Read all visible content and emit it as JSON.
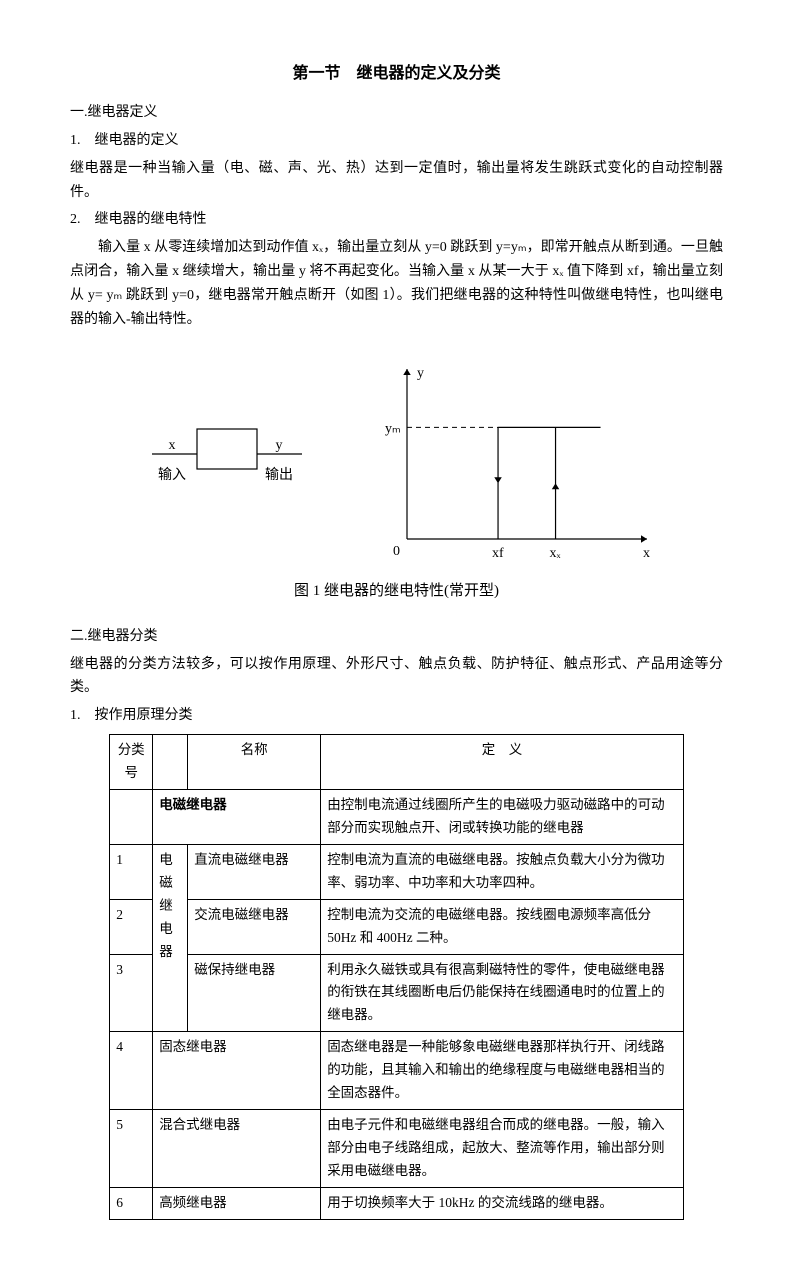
{
  "title": "第一节　继电器的定义及分类",
  "sec1": {
    "heading": "一.继电器定义",
    "item1": {
      "heading": "1.　继电器的定义",
      "body": "继电器是一种当输入量（电、磁、声、光、热）达到一定值时，输出量将发生跳跃式变化的自动控制器件。"
    },
    "item2": {
      "heading": "2.　继电器的继电特性",
      "body": "输入量 x 从零连续增加达到动作值 xₓ，输出量立刻从 y=0 跳跃到 y=yₘ，即常开触点从断到通。一旦触点闭合，输入量 x 继续增大，输出量 y 将不再起变化。当输入量 x 从某一大于 xₓ 值下降到 xf，输出量立刻从 y=  yₘ 跳跃到 y=0，继电器常开触点断开（如图 1）。我们把继电器的这种特性叫做继电特性，也叫继电器的输入-输出特性。"
    }
  },
  "figure1": {
    "block": {
      "x_label": "x",
      "y_label": "y",
      "in_label": "输入",
      "out_label": "输出"
    },
    "chart": {
      "type": "step-hysteresis",
      "y_axis_label": "y",
      "x_axis_label": "x",
      "origin_label": "0",
      "ym_label": "yₘ",
      "xf_label": "xf",
      "xx_label": "xₓ",
      "axis_color": "#000000",
      "line_color": "#000000",
      "line_width": 1.2,
      "arrow_size": 6,
      "xlim": [
        0,
        240
      ],
      "ylim": [
        0,
        170
      ],
      "xf": 95,
      "xx": 155,
      "ym": 115
    },
    "caption": "图 1 继电器的继电特性(常开型)"
  },
  "sec2": {
    "heading": "二.继电器分类",
    "intro": "继电器的分类方法较多，可以按作用原理、外形尺寸、触点负载、防护特征、触点形式、产品用途等分类。",
    "sub1": "1.　按作用原理分类"
  },
  "table": {
    "header": {
      "num": "分类号",
      "name": "名称",
      "def": "定　义"
    },
    "group_label": "电磁继电器",
    "rows": [
      {
        "num": "",
        "name_bold": "电磁继电器",
        "def": "由控制电流通过线圈所产生的电磁吸力驱动磁路中的可动部分而实现触点开、闭或转换功能的继电器"
      },
      {
        "num": "1",
        "name": "直流电磁继电器",
        "def": "控制电流为直流的电磁继电器。按触点负载大小分为微功率、弱功率、中功率和大功率四种。"
      },
      {
        "num": "2",
        "name": "交流电磁继电器",
        "def": "控制电流为交流的电磁继电器。按线圈电源频率高低分 50Hz 和 400Hz 二种。"
      },
      {
        "num": "3",
        "name": "磁保持继电器",
        "def": "利用永久磁铁或具有很高剩磁特性的零件，使电磁继电器的衔铁在其线圈断电后仍能保持在线圈通电时的位置上的继电器。"
      },
      {
        "num": "4",
        "name": "固态继电器",
        "def": "固态继电器是一种能够象电磁继电器那样执行开、闭线路的功能，且其输入和输出的绝缘程度与电磁继电器相当的全固态器件。"
      },
      {
        "num": "5",
        "name": "混合式继电器",
        "def": "由电子元件和电磁继电器组合而成的继电器。一般，输入部分由电子线路组成，起放大、整流等作用，输出部分则采用电磁继电器。"
      },
      {
        "num": "6",
        "name": "高频继电器",
        "def": "用于切换频率大于 10kHz 的交流线路的继电器。"
      }
    ]
  }
}
